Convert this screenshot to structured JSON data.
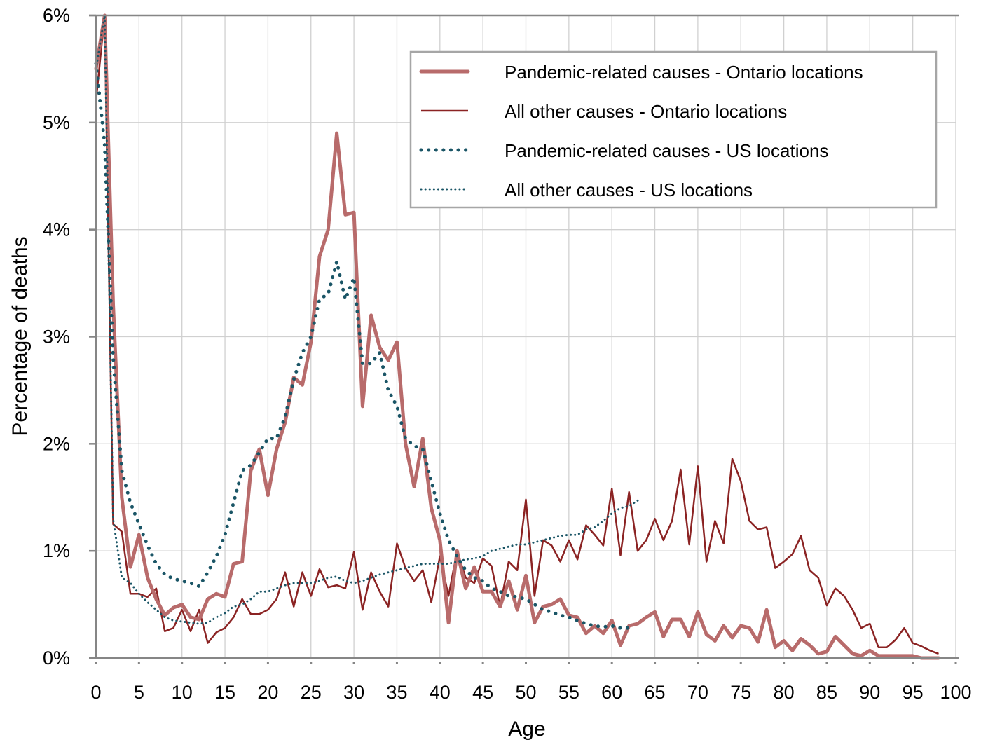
{
  "chart_data": {
    "type": "line",
    "title": "",
    "xlabel": "Age",
    "ylabel": "Percentage of deaths",
    "xlim": [
      0,
      100
    ],
    "ylim": [
      0,
      6
    ],
    "xticks": [
      "0",
      "5",
      "10",
      "15",
      "20",
      "25",
      "30",
      "35",
      "40",
      "45",
      "50",
      "55",
      "60",
      "65",
      "70",
      "75",
      "80",
      "85",
      "90",
      "95",
      "100"
    ],
    "yticks": [
      "0%",
      "1%",
      "2%",
      "3%",
      "4%",
      "5%",
      "6%"
    ],
    "grid": true,
    "legend_position": "top-right",
    "series": [
      {
        "name": "Pandemic-related causes - Ontario locations",
        "color": "#b86b6b",
        "style": "thick-solid",
        "x": [
          0,
          1,
          2,
          3,
          4,
          5,
          6,
          7,
          8,
          9,
          10,
          11,
          12,
          13,
          14,
          15,
          16,
          17,
          18,
          19,
          20,
          21,
          22,
          23,
          24,
          25,
          26,
          27,
          28,
          29,
          30,
          31,
          32,
          33,
          34,
          35,
          36,
          37,
          38,
          39,
          40,
          41,
          42,
          43,
          44,
          45,
          46,
          47,
          48,
          49,
          50,
          51,
          52,
          53,
          54,
          55,
          56,
          57,
          58,
          59,
          60,
          61,
          62,
          63,
          64,
          65,
          66,
          67,
          68,
          69,
          70,
          71,
          72,
          73,
          74,
          75,
          76,
          77,
          78,
          79,
          80,
          81,
          82,
          83,
          84,
          85,
          86,
          87,
          88,
          89,
          90,
          91,
          92,
          93,
          94,
          95,
          96,
          97,
          98
        ],
        "values": [
          5.5,
          6.0,
          3.3,
          1.5,
          0.85,
          1.15,
          0.75,
          0.55,
          0.4,
          0.47,
          0.5,
          0.38,
          0.36,
          0.55,
          0.6,
          0.57,
          0.88,
          0.9,
          1.75,
          1.95,
          1.52,
          1.95,
          2.2,
          2.62,
          2.55,
          2.95,
          3.75,
          4.0,
          4.9,
          4.14,
          4.16,
          2.35,
          3.2,
          2.9,
          2.78,
          2.95,
          2.0,
          1.6,
          2.05,
          1.4,
          1.1,
          0.33,
          1.0,
          0.65,
          0.85,
          0.62,
          0.62,
          0.48,
          0.72,
          0.45,
          0.77,
          0.33,
          0.48,
          0.5,
          0.55,
          0.4,
          0.38,
          0.23,
          0.3,
          0.23,
          0.35,
          0.12,
          0.3,
          0.32,
          0.38,
          0.43,
          0.2,
          0.36,
          0.36,
          0.2,
          0.43,
          0.22,
          0.16,
          0.3,
          0.19,
          0.3,
          0.28,
          0.15,
          0.45,
          0.1,
          0.16,
          0.07,
          0.18,
          0.12,
          0.04,
          0.06,
          0.2,
          0.12,
          0.04,
          0.02,
          0.07,
          0.02,
          0.02,
          0.02,
          0.02,
          0.02,
          0.0,
          0.0,
          0.0
        ]
      },
      {
        "name": "All other causes - Ontario locations",
        "color": "#8b2323",
        "style": "thin-solid",
        "x": [
          0,
          1,
          2,
          3,
          4,
          5,
          6,
          7,
          8,
          9,
          10,
          11,
          12,
          13,
          14,
          15,
          16,
          17,
          18,
          19,
          20,
          21,
          22,
          23,
          24,
          25,
          26,
          27,
          28,
          29,
          30,
          31,
          32,
          33,
          34,
          35,
          36,
          37,
          38,
          39,
          40,
          41,
          42,
          43,
          44,
          45,
          46,
          47,
          48,
          49,
          50,
          51,
          52,
          53,
          54,
          55,
          56,
          57,
          58,
          59,
          60,
          61,
          62,
          63,
          64,
          65,
          66,
          67,
          68,
          69,
          70,
          71,
          72,
          73,
          74,
          75,
          76,
          77,
          78,
          79,
          80,
          81,
          82,
          83,
          84,
          85,
          86,
          87,
          88,
          89,
          90,
          91,
          92,
          93,
          94,
          95,
          96,
          97,
          98
        ],
        "values": [
          5.2,
          6.0,
          1.25,
          1.18,
          0.6,
          0.6,
          0.57,
          0.65,
          0.25,
          0.28,
          0.45,
          0.25,
          0.45,
          0.14,
          0.24,
          0.28,
          0.38,
          0.55,
          0.41,
          0.41,
          0.45,
          0.55,
          0.8,
          0.48,
          0.8,
          0.58,
          0.83,
          0.66,
          0.68,
          0.65,
          0.99,
          0.45,
          0.8,
          0.62,
          0.48,
          1.07,
          0.84,
          0.72,
          0.82,
          0.52,
          0.95,
          0.58,
          1.0,
          0.75,
          0.7,
          0.93,
          0.86,
          0.48,
          0.9,
          0.82,
          1.48,
          0.58,
          1.1,
          1.05,
          0.9,
          1.1,
          0.92,
          1.24,
          1.15,
          1.05,
          1.58,
          0.96,
          1.55,
          1.0,
          1.1,
          1.3,
          1.1,
          1.28,
          1.76,
          1.06,
          1.79,
          0.9,
          1.28,
          1.07,
          1.86,
          1.65,
          1.28,
          1.2,
          1.22,
          0.84,
          0.9,
          0.97,
          1.14,
          0.82,
          0.75,
          0.49,
          0.65,
          0.58,
          0.45,
          0.28,
          0.32,
          0.1,
          0.1,
          0.17,
          0.28,
          0.14,
          0.11,
          0.07,
          0.04
        ]
      },
      {
        "name": "Pandemic-related causes - US locations",
        "color": "#1a5566",
        "style": "thick-dotted",
        "x": [
          0,
          1,
          2,
          3,
          4,
          5,
          6,
          7,
          8,
          9,
          10,
          11,
          12,
          13,
          14,
          15,
          16,
          17,
          18,
          19,
          20,
          21,
          22,
          23,
          24,
          25,
          26,
          27,
          28,
          29,
          30,
          31,
          32,
          33,
          34,
          35,
          36,
          37,
          38,
          39,
          40,
          41,
          42,
          43,
          44,
          45,
          46,
          47,
          48,
          49,
          50,
          51,
          52,
          53,
          54,
          55,
          56,
          57,
          58,
          59,
          60,
          61,
          62
        ],
        "values": [
          5.55,
          4.8,
          2.8,
          1.75,
          1.45,
          1.25,
          1.05,
          0.88,
          0.78,
          0.74,
          0.72,
          0.7,
          0.67,
          0.8,
          0.95,
          1.15,
          1.45,
          1.75,
          1.8,
          1.92,
          2.05,
          2.05,
          2.25,
          2.6,
          2.85,
          3.0,
          3.35,
          3.4,
          3.7,
          3.35,
          3.55,
          2.75,
          2.75,
          2.85,
          2.5,
          2.35,
          2.05,
          1.98,
          1.95,
          1.65,
          1.35,
          1.1,
          0.95,
          0.82,
          0.75,
          0.72,
          0.65,
          0.62,
          0.58,
          0.57,
          0.55,
          0.5,
          0.45,
          0.43,
          0.4,
          0.38,
          0.35,
          0.32,
          0.3,
          0.29,
          0.3,
          0.28,
          0.28
        ]
      },
      {
        "name": "All other causes - US locations",
        "color": "#1a5566",
        "style": "thin-dotted",
        "x": [
          0,
          1,
          2,
          3,
          4,
          5,
          6,
          7,
          8,
          9,
          10,
          11,
          12,
          13,
          14,
          15,
          16,
          17,
          18,
          19,
          20,
          21,
          22,
          23,
          24,
          25,
          26,
          27,
          28,
          29,
          30,
          31,
          32,
          33,
          34,
          35,
          36,
          37,
          38,
          39,
          40,
          41,
          42,
          43,
          44,
          45,
          46,
          47,
          48,
          49,
          50,
          51,
          52,
          53,
          54,
          55,
          56,
          57,
          58,
          59,
          60,
          61,
          62,
          63
        ],
        "values": [
          5.5,
          6.0,
          1.3,
          0.75,
          0.7,
          0.6,
          0.52,
          0.45,
          0.38,
          0.35,
          0.34,
          0.33,
          0.32,
          0.33,
          0.38,
          0.42,
          0.48,
          0.5,
          0.55,
          0.62,
          0.62,
          0.65,
          0.68,
          0.7,
          0.7,
          0.7,
          0.72,
          0.75,
          0.76,
          0.72,
          0.7,
          0.72,
          0.75,
          0.78,
          0.8,
          0.82,
          0.84,
          0.86,
          0.88,
          0.88,
          0.88,
          0.88,
          0.9,
          0.92,
          0.93,
          0.95,
          1.0,
          1.02,
          1.04,
          1.06,
          1.06,
          1.08,
          1.1,
          1.12,
          1.14,
          1.15,
          1.15,
          1.2,
          1.22,
          1.28,
          1.35,
          1.4,
          1.42,
          1.47
        ]
      }
    ]
  }
}
